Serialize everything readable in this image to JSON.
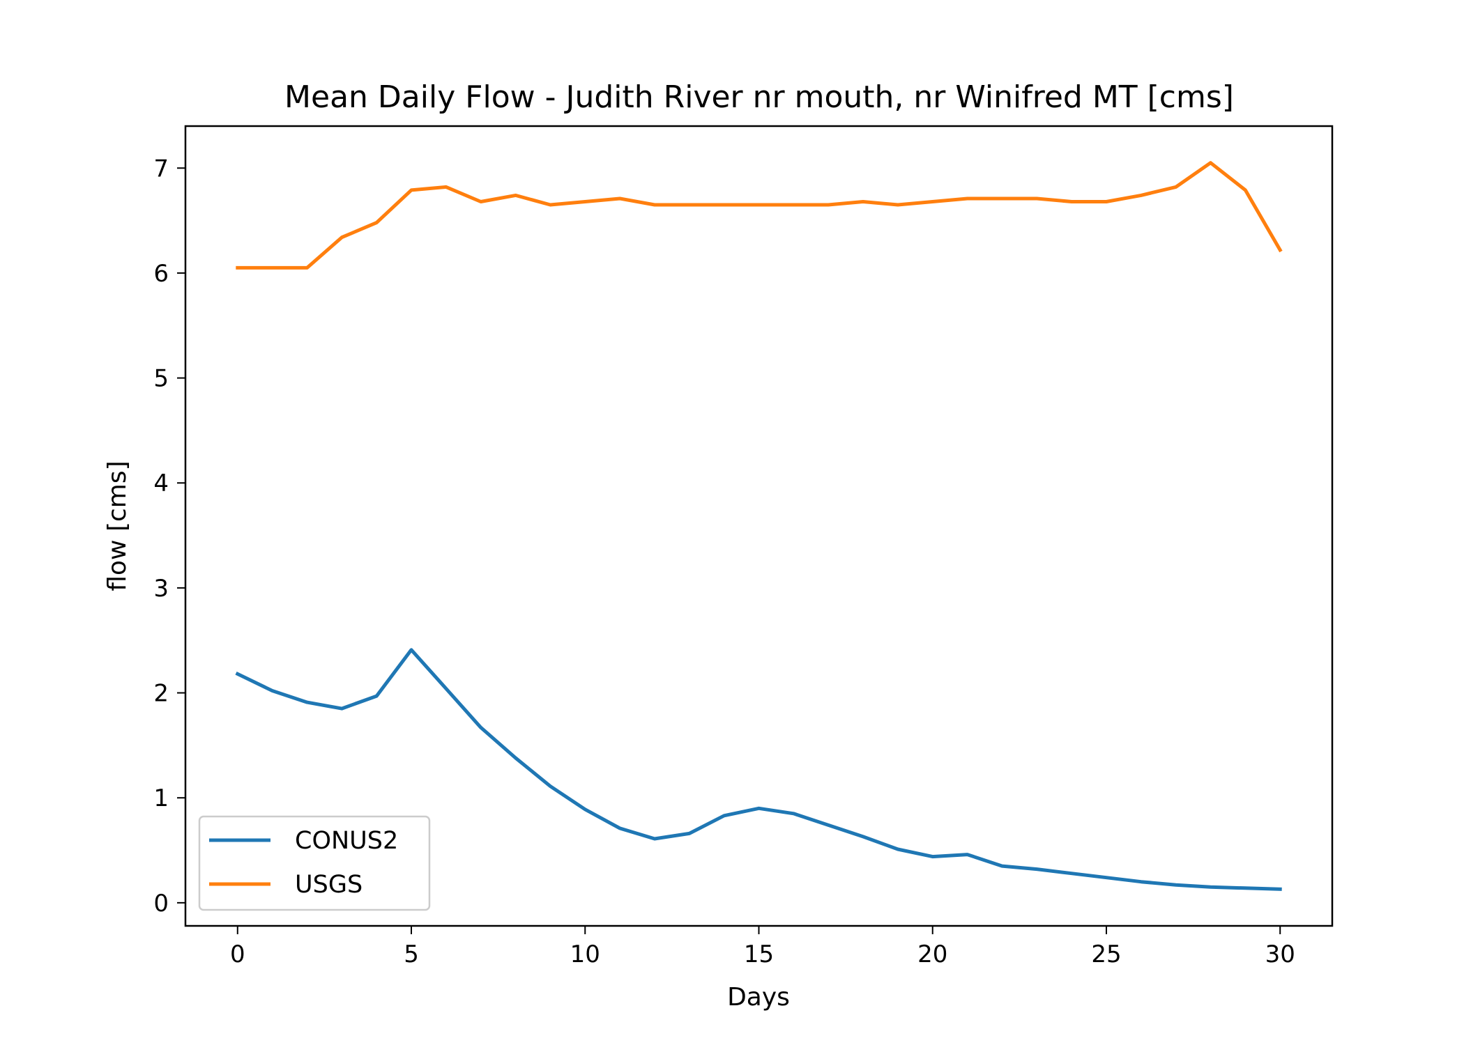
{
  "chart_data": {
    "type": "line",
    "title": "Mean Daily Flow - Judith River nr mouth, nr Winifred MT [cms]",
    "xlabel": "Days",
    "ylabel": "flow [cms]",
    "xlim": [
      -1.5,
      31.5
    ],
    "ylim": [
      -0.22,
      7.4
    ],
    "xticks": [
      0,
      5,
      10,
      15,
      20,
      25,
      30
    ],
    "yticks": [
      0,
      1,
      2,
      3,
      4,
      5,
      6,
      7
    ],
    "grid": false,
    "legend_position": "lower-left",
    "x": [
      0,
      1,
      2,
      3,
      4,
      5,
      6,
      7,
      8,
      9,
      10,
      11,
      12,
      13,
      14,
      15,
      16,
      17,
      18,
      19,
      20,
      21,
      22,
      23,
      24,
      25,
      26,
      27,
      28,
      29,
      30
    ],
    "series": [
      {
        "name": "CONUS2",
        "color": "#1f77b4",
        "values": [
          2.18,
          2.02,
          1.91,
          1.85,
          1.97,
          2.41,
          2.04,
          1.67,
          1.38,
          1.11,
          0.89,
          0.71,
          0.61,
          0.66,
          0.83,
          0.9,
          0.85,
          0.74,
          0.63,
          0.51,
          0.44,
          0.46,
          0.35,
          0.32,
          0.28,
          0.24,
          0.2,
          0.17,
          0.15,
          0.14,
          0.13
        ]
      },
      {
        "name": "USGS",
        "color": "#ff7f0e",
        "values": [
          6.05,
          6.05,
          6.05,
          6.34,
          6.48,
          6.79,
          6.82,
          6.68,
          6.74,
          6.65,
          6.68,
          6.71,
          6.65,
          6.65,
          6.65,
          6.65,
          6.65,
          6.65,
          6.68,
          6.65,
          6.68,
          6.71,
          6.71,
          6.71,
          6.68,
          6.68,
          6.74,
          6.82,
          7.05,
          6.79,
          6.22
        ]
      }
    ]
  }
}
